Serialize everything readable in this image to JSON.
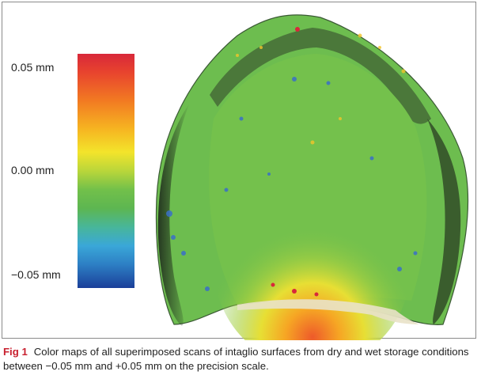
{
  "figure": {
    "scale": {
      "labels": [
        "0.05 mm",
        "0.00 mm",
        "−0.05 mm"
      ]
    },
    "caption": {
      "label": "Fig 1",
      "text": "Color maps of all superimposed scans of intaglio surfaces from dry and wet storage conditions between −0.05 mm and +0.05 mm on the precision scale."
    },
    "colors": {
      "max": "#d8283a",
      "zero": "#72c04a",
      "min": "#1b3f99",
      "caption_label": "#c8202f"
    }
  }
}
